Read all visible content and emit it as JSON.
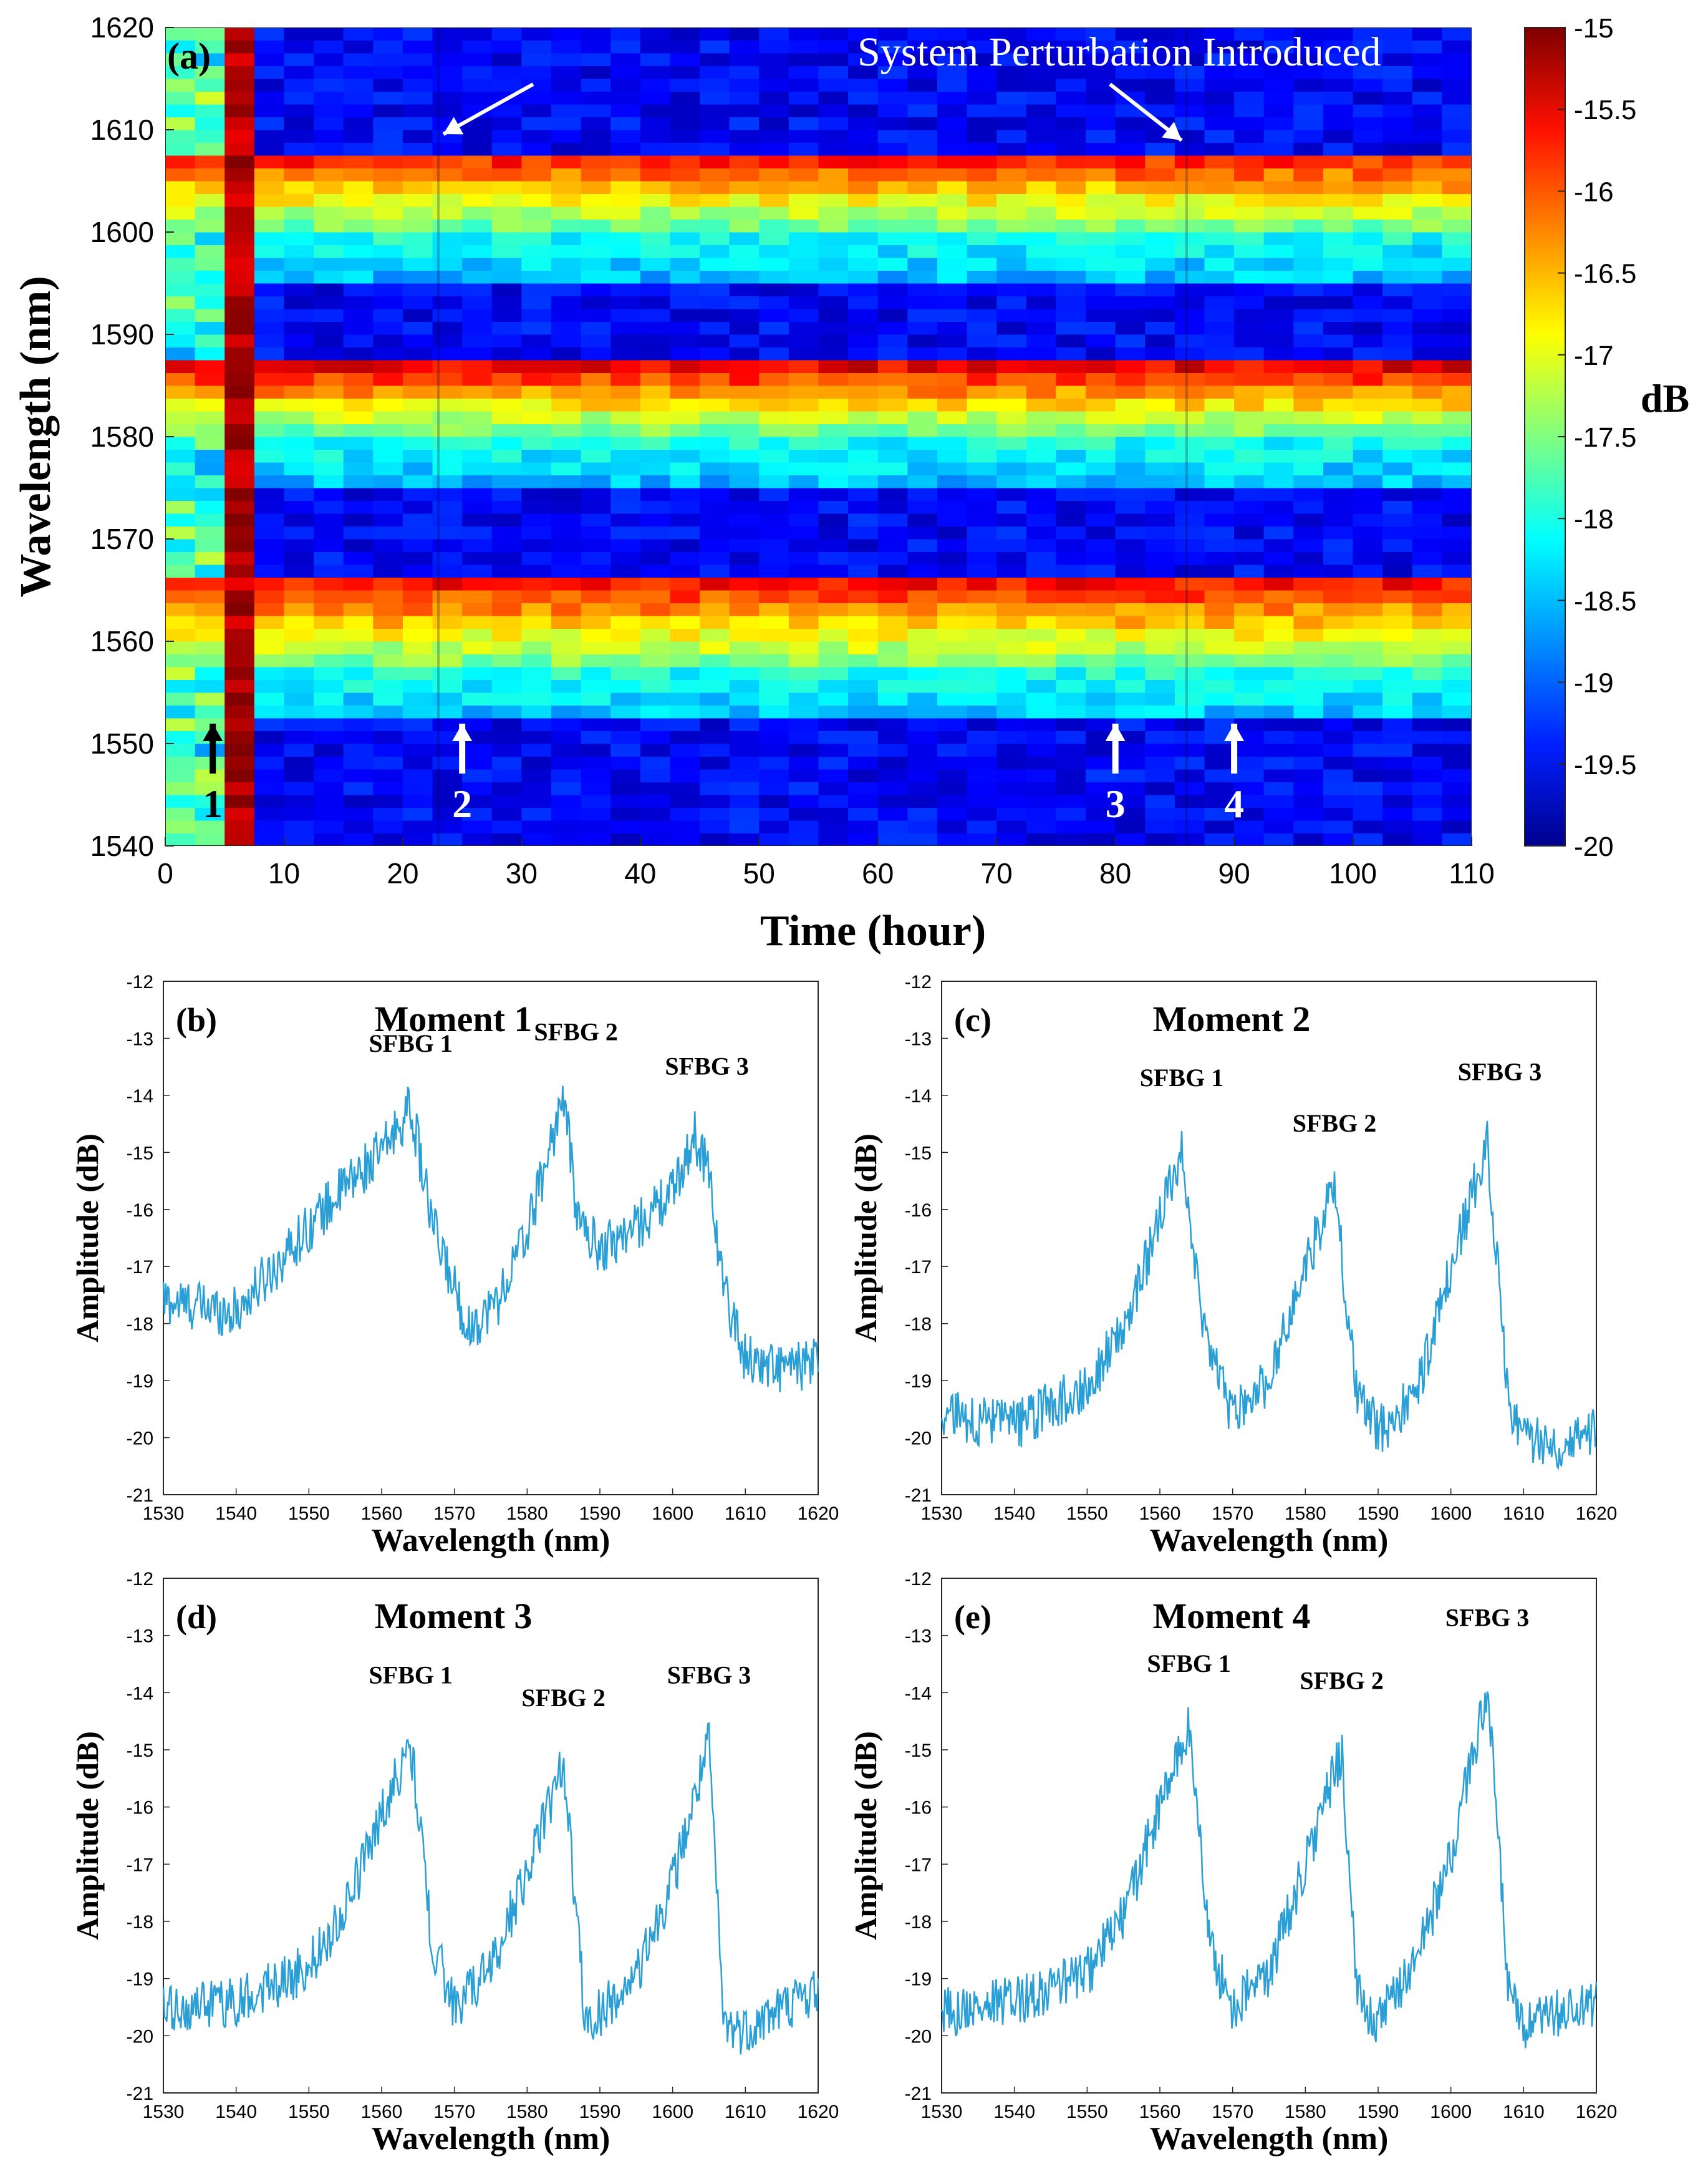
{
  "figure": {
    "heatmap": {
      "type": "heatmap",
      "panel_label": "(a)",
      "xlabel": "Time (hour)",
      "ylabel": "Wavelength (nm)",
      "colorbar_label": "dB",
      "xlim": [
        0,
        110
      ],
      "ylim": [
        1540,
        1620
      ],
      "xticks": [
        0,
        10,
        20,
        30,
        40,
        50,
        60,
        70,
        80,
        90,
        100,
        110
      ],
      "yticks": [
        1540,
        1550,
        1560,
        1570,
        1580,
        1590,
        1600,
        1610,
        1620
      ],
      "data_extent_hours": 110,
      "color_range_db": [
        -20,
        -15
      ],
      "colorbar_ticks": [
        -15,
        -15.5,
        -16,
        -16.5,
        -17,
        -17.5,
        -18,
        -18.5,
        -19,
        -19.5,
        -20
      ],
      "annotation": "System Perturbation Introduced",
      "perturbation_times_hours": [
        23,
        86
      ],
      "moments": [
        {
          "label": "1",
          "time_hours": 4,
          "arrow_color": "black"
        },
        {
          "label": "2",
          "time_hours": 25,
          "arrow_color": "white"
        },
        {
          "label": "3",
          "time_hours": 80,
          "arrow_color": "white"
        },
        {
          "label": "4",
          "time_hours": 90,
          "arrow_color": "white"
        }
      ],
      "bands_nm": [
        {
          "name": "SFBG 1",
          "low": 1557,
          "high": 1566.5
        },
        {
          "name": "SFBG 2",
          "low": 1580,
          "high": 1587
        },
        {
          "name": "SFBG 3",
          "low": 1600,
          "high": 1608
        }
      ]
    },
    "spectra": [
      {
        "panel_label": "(b)",
        "title": "Moment 1",
        "xlabel": "Wavelength (nm)",
        "ylabel": "Amplitude (dB)",
        "xlim": [
          1530,
          1620
        ],
        "ylim": [
          -21,
          -12
        ],
        "xticks": [
          1530,
          1540,
          1550,
          1560,
          1570,
          1580,
          1590,
          1600,
          1610,
          1620
        ],
        "yticks": [
          -12,
          -13,
          -14,
          -15,
          -16,
          -17,
          -18,
          -19,
          -20,
          -21
        ],
        "line_color": "#2a9fd6",
        "peaks": [
          {
            "label": "SFBG 1",
            "x": 1564,
            "y": -14.0
          },
          {
            "label": "SFBG 2",
            "x": 1585,
            "y": -13.8
          },
          {
            "label": "SFBG 3",
            "x": 1603,
            "y": -14.4
          }
        ],
        "series": {
          "x": [
            1530,
            1540,
            1550,
            1555,
            1560,
            1564,
            1567,
            1572,
            1576,
            1580,
            1585,
            1587,
            1590,
            1595,
            1600,
            1603,
            1605,
            1607,
            1610,
            1615,
            1620
          ],
          "y": [
            -17.6,
            -17.8,
            -16.3,
            -15.6,
            -15.0,
            -14.2,
            -16.3,
            -18.1,
            -17.6,
            -16.4,
            -14.0,
            -16.2,
            -16.7,
            -16.3,
            -15.7,
            -14.7,
            -15.3,
            -17.4,
            -18.6,
            -18.8,
            -18.7
          ]
        }
      },
      {
        "panel_label": "(c)",
        "title": "Moment 2",
        "xlabel": "Wavelength (nm)",
        "ylabel": "Amplitude (dB)",
        "xlim": [
          1530,
          1620
        ],
        "ylim": [
          -21,
          -12
        ],
        "xticks": [
          1530,
          1540,
          1550,
          1560,
          1570,
          1580,
          1590,
          1600,
          1610,
          1620
        ],
        "yticks": [
          -12,
          -13,
          -14,
          -15,
          -16,
          -17,
          -18,
          -19,
          -20,
          -21
        ],
        "line_color": "#2a9fd6",
        "peaks": [
          {
            "label": "SFBG 1",
            "x": 1563,
            "y": -14.6
          },
          {
            "label": "SFBG 2",
            "x": 1584,
            "y": -15.4
          },
          {
            "label": "SFBG 3",
            "x": 1605,
            "y": -14.5
          }
        ],
        "series": {
          "x": [
            1530,
            1540,
            1550,
            1555,
            1560,
            1563,
            1566,
            1570,
            1575,
            1580,
            1584,
            1587,
            1590,
            1595,
            1600,
            1605,
            1608,
            1610,
            1615,
            1620
          ],
          "y": [
            -19.6,
            -19.8,
            -19.1,
            -18.1,
            -16.2,
            -14.9,
            -18.2,
            -19.6,
            -19.0,
            -17.0,
            -15.6,
            -19.2,
            -19.9,
            -19.3,
            -17.1,
            -14.8,
            -19.4,
            -20.0,
            -20.1,
            -19.8
          ]
        }
      },
      {
        "panel_label": "(d)",
        "title": "Moment 3",
        "xlabel": "Wavelength (nm)",
        "ylabel": "Amplitude (dB)",
        "xlim": [
          1530,
          1620
        ],
        "ylim": [
          -21,
          -12
        ],
        "xticks": [
          1530,
          1540,
          1550,
          1560,
          1570,
          1580,
          1590,
          1600,
          1610,
          1620
        ],
        "yticks": [
          -12,
          -13,
          -14,
          -15,
          -16,
          -17,
          -18,
          -19,
          -20,
          -21
        ],
        "line_color": "#2a9fd6",
        "peaks": [
          {
            "label": "SFBG 1",
            "x": 1564,
            "y": -14.6
          },
          {
            "label": "SFBG 2",
            "x": 1585,
            "y": -15.0
          },
          {
            "label": "SFBG 3",
            "x": 1605,
            "y": -14.6
          }
        ],
        "series": {
          "x": [
            1530,
            1540,
            1550,
            1555,
            1560,
            1564,
            1567,
            1570,
            1575,
            1580,
            1585,
            1588,
            1590,
            1595,
            1600,
            1605,
            1607,
            1610,
            1615,
            1620
          ],
          "y": [
            -19.6,
            -19.4,
            -18.8,
            -17.8,
            -16.1,
            -14.9,
            -18.4,
            -19.5,
            -18.8,
            -17.1,
            -15.2,
            -19.8,
            -19.6,
            -19.0,
            -17.3,
            -14.9,
            -19.8,
            -19.9,
            -19.5,
            -19.2
          ]
        }
      },
      {
        "panel_label": "(e)",
        "title": "Moment 4",
        "xlabel": "Wavelength (nm)",
        "ylabel": "Amplitude (dB)",
        "xlim": [
          1530,
          1620
        ],
        "ylim": [
          -21,
          -12
        ],
        "xticks": [
          1530,
          1540,
          1550,
          1560,
          1570,
          1580,
          1590,
          1600,
          1610,
          1620
        ],
        "yticks": [
          -12,
          -13,
          -14,
          -15,
          -16,
          -17,
          -18,
          -19,
          -20,
          -21
        ],
        "line_color": "#2a9fd6",
        "peaks": [
          {
            "label": "SFBG 1",
            "x": 1564,
            "y": -14.4
          },
          {
            "label": "SFBG 2",
            "x": 1585,
            "y": -14.7
          },
          {
            "label": "SFBG 3",
            "x": 1605,
            "y": -13.6
          }
        ],
        "series": {
          "x": [
            1530,
            1540,
            1550,
            1555,
            1560,
            1564,
            1567,
            1570,
            1575,
            1580,
            1585,
            1587,
            1590,
            1595,
            1600,
            1605,
            1608,
            1610,
            1615,
            1620
          ],
          "y": [
            -19.6,
            -19.4,
            -18.9,
            -17.9,
            -16.0,
            -14.6,
            -18.5,
            -19.5,
            -18.9,
            -17.0,
            -15.0,
            -19.2,
            -19.8,
            -18.7,
            -16.9,
            -13.9,
            -19.3,
            -19.9,
            -19.6,
            -19.5
          ]
        }
      }
    ]
  }
}
